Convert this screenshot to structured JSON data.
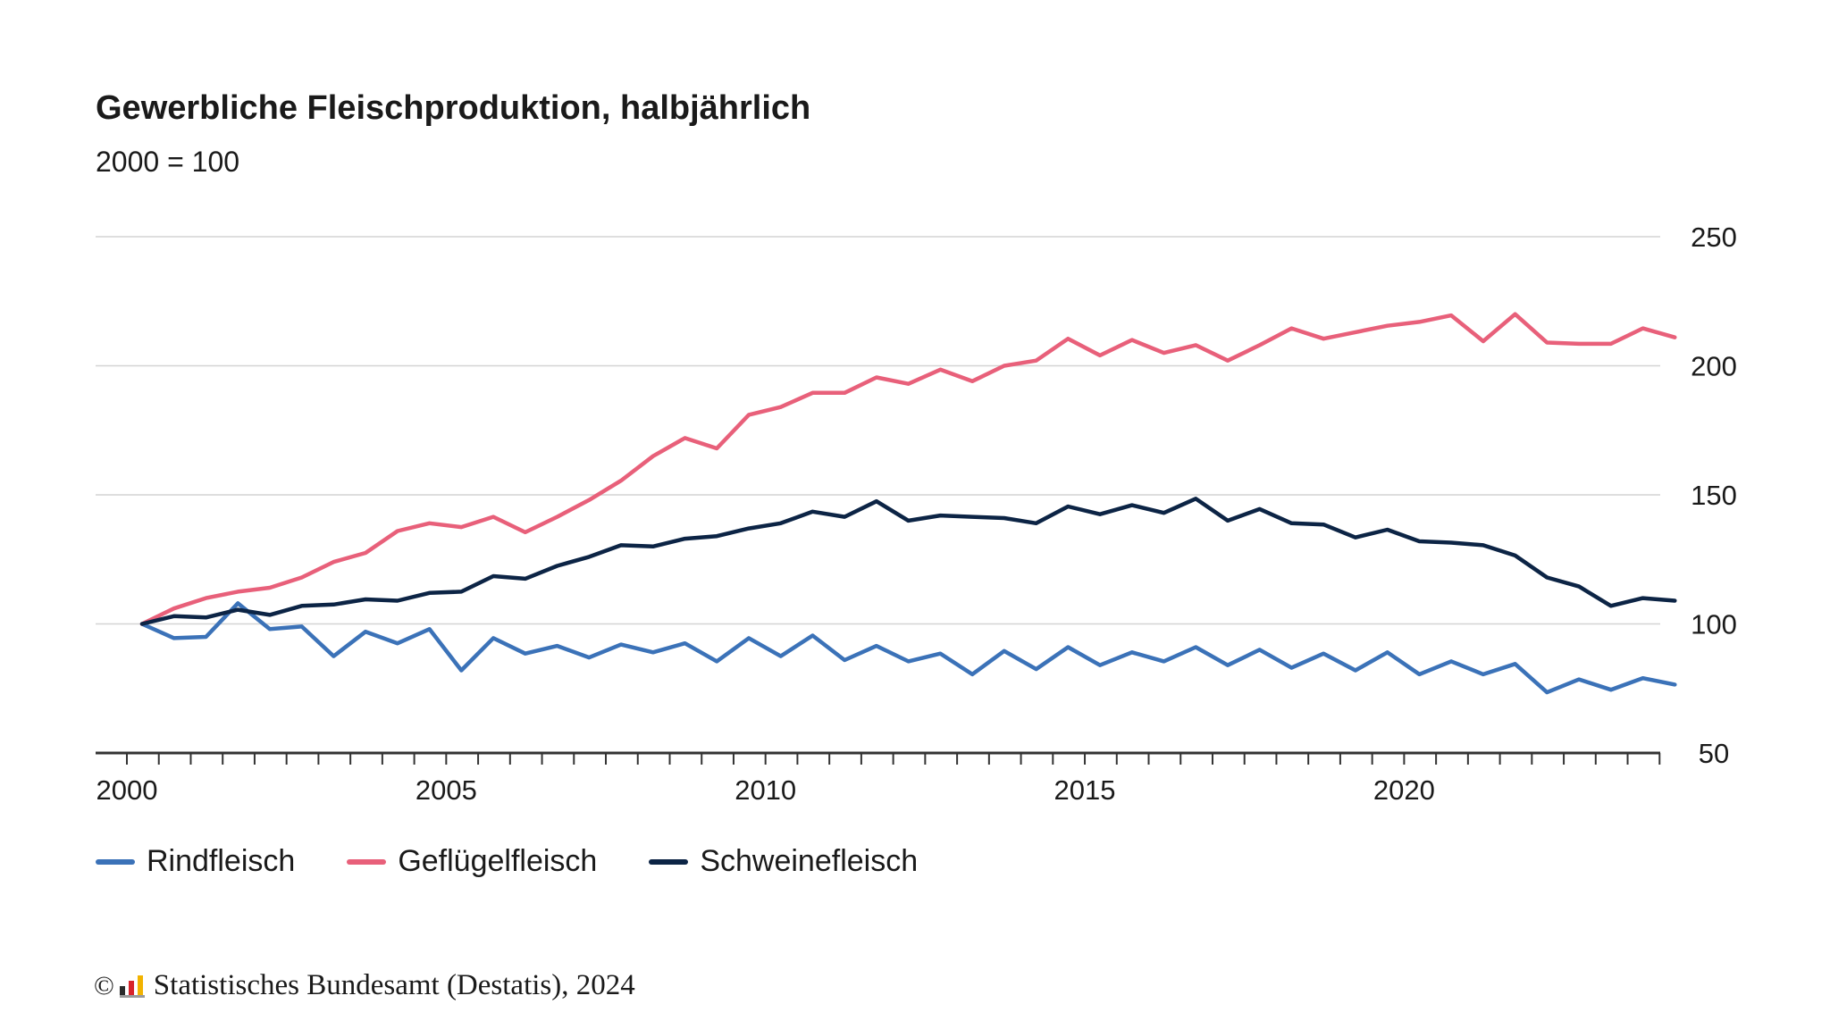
{
  "chart_data": {
    "type": "line",
    "title": "Gewerbliche Fleischproduktion, halbjährlich",
    "subtitle": "2000 = 100",
    "ylim": [
      50,
      250
    ],
    "yticks": [
      50,
      100,
      150,
      200,
      250
    ],
    "xlim": [
      2000,
      2024.5
    ],
    "xticks": [
      2000,
      2005,
      2010,
      2015,
      2020
    ],
    "grid": true,
    "legend_position": "bottom",
    "x": [
      2000.25,
      2000.75,
      2001.25,
      2001.75,
      2002.25,
      2002.75,
      2003.25,
      2003.75,
      2004.25,
      2004.75,
      2005.25,
      2005.75,
      2006.25,
      2006.75,
      2007.25,
      2007.75,
      2008.25,
      2008.75,
      2009.25,
      2009.75,
      2010.25,
      2010.75,
      2011.25,
      2011.75,
      2012.25,
      2012.75,
      2013.25,
      2013.75,
      2014.25,
      2014.75,
      2015.25,
      2015.75,
      2016.25,
      2016.75,
      2017.25,
      2017.75,
      2018.25,
      2018.75,
      2019.25,
      2019.75,
      2020.25,
      2020.75,
      2021.25,
      2021.75,
      2022.25,
      2022.75,
      2023.25,
      2023.75,
      2024.25
    ],
    "series": [
      {
        "name": "Rindfleisch",
        "color": "#3b72b8",
        "values": [
          100,
          94.5,
          95,
          108,
          98,
          99,
          87.5,
          97,
          92.5,
          98,
          82,
          94.5,
          88.5,
          91.5,
          87,
          92,
          89,
          92.5,
          85.5,
          94.5,
          87.5,
          95.5,
          86,
          91.5,
          85.5,
          88.5,
          80.5,
          89.5,
          82.5,
          91,
          84,
          89,
          85.5,
          91,
          84,
          90,
          83,
          88.5,
          82,
          89,
          80.5,
          85.5,
          80.5,
          84.5,
          73.5,
          78.5,
          74.5,
          79,
          76.5
        ]
      },
      {
        "name": "Geflügelfleisch",
        "color": "#e8607a",
        "values": [
          100,
          106,
          110,
          112.5,
          114,
          118,
          124,
          127.5,
          136,
          139,
          137.5,
          141.5,
          135.5,
          141.5,
          148,
          155.5,
          165,
          172,
          168,
          181,
          184,
          189.5,
          189.5,
          195.5,
          193,
          198.5,
          194,
          200,
          202,
          210.5,
          204,
          210,
          205,
          208,
          202,
          208,
          214.5,
          210.5,
          213,
          215.5,
          217,
          219.5,
          209.5,
          220,
          209,
          208.5,
          208.5,
          214.5,
          211
        ]
      },
      {
        "name": "Schweinefleisch",
        "color": "#0c2445",
        "values": [
          100,
          103,
          102.5,
          105.5,
          103.5,
          107,
          107.5,
          109.5,
          109,
          112,
          112.5,
          118.5,
          117.5,
          122.5,
          126,
          130.5,
          130,
          133,
          134,
          137,
          139,
          143.5,
          141.5,
          147.5,
          140,
          142,
          141.5,
          141,
          139,
          145.5,
          142.5,
          146,
          143,
          148.5,
          140,
          144.5,
          139,
          138.5,
          133.5,
          136.5,
          132,
          131.5,
          130.5,
          126.5,
          118,
          114.5,
          107,
          110,
          109
        ]
      }
    ]
  },
  "source": {
    "copyright": "©",
    "text": "Statistisches Bundesamt (Destatis), 2024",
    "logo_colors": [
      "#2b2b2b",
      "#d8232a",
      "#f2b300"
    ]
  }
}
